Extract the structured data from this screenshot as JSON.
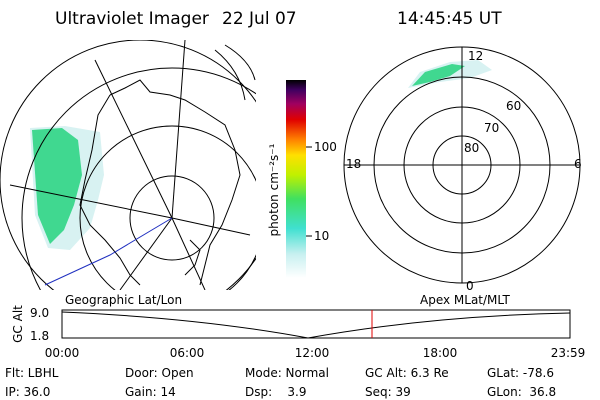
{
  "header": {
    "title": "Ultraviolet Imager",
    "date": "22 Jul 07",
    "time": "14:45:45 UT"
  },
  "colorbar": {
    "unit": "photon cm⁻²s⁻¹",
    "labels": [
      "100",
      "10"
    ]
  },
  "polar": {
    "mlt_labels": [
      "12",
      "18",
      "6",
      "0"
    ],
    "lat_labels": [
      "80",
      "70",
      "60"
    ]
  },
  "timeline": {
    "left_label": "Geographic Lat/Lon",
    "right_label": "Apex MLat/MLT",
    "y_axis_label": "GC Alt",
    "y_labels": [
      "9.0",
      "1.8"
    ],
    "x_labels": [
      "00:00",
      "06:00",
      "12:00",
      "18:00",
      "23:59"
    ]
  },
  "status": {
    "rows": [
      [
        "Flt: LBHL",
        "Door: Open",
        "Mode: Normal",
        "GC Alt: 6.3 Re",
        "GLat: -78.6"
      ],
      [
        "IP: 36.0",
        "Gain: 14",
        "Dsp:    3.9",
        "Seq: 39",
        "GLon:  36.8"
      ]
    ]
  }
}
